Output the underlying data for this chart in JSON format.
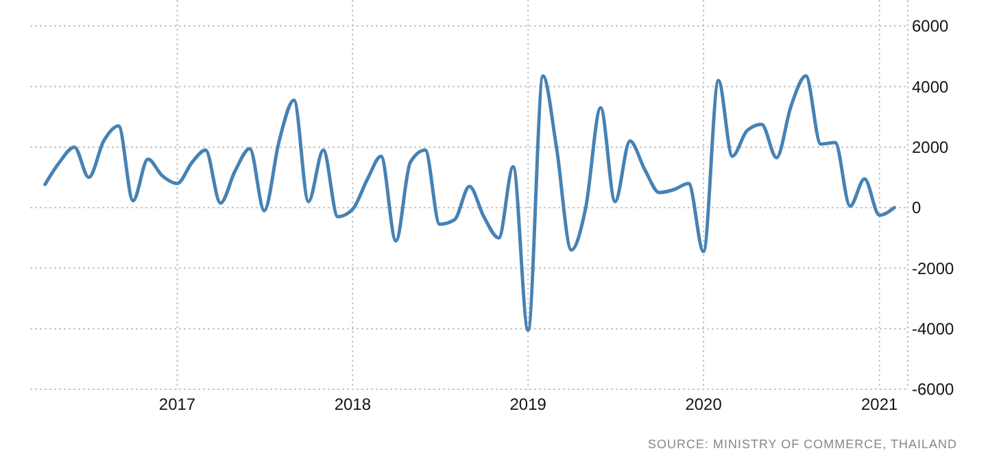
{
  "chart_data": {
    "type": "line",
    "x": [
      "2016-04",
      "2016-05",
      "2016-06",
      "2016-07",
      "2016-08",
      "2016-09",
      "2016-10",
      "2016-11",
      "2016-12",
      "2017-01",
      "2017-02",
      "2017-03",
      "2017-04",
      "2017-05",
      "2017-06",
      "2017-07",
      "2017-08",
      "2017-09",
      "2017-10",
      "2017-11",
      "2017-12",
      "2018-01",
      "2018-02",
      "2018-03",
      "2018-04",
      "2018-05",
      "2018-06",
      "2018-07",
      "2018-08",
      "2018-09",
      "2018-10",
      "2018-11",
      "2018-12",
      "2019-01",
      "2019-02",
      "2019-03",
      "2019-04",
      "2019-05",
      "2019-06",
      "2019-07",
      "2019-08",
      "2019-09",
      "2019-10",
      "2019-11",
      "2019-12",
      "2020-01",
      "2020-02",
      "2020-03",
      "2020-04",
      "2020-05",
      "2020-06",
      "2020-07",
      "2020-08",
      "2020-09",
      "2020-10",
      "2020-11",
      "2020-12",
      "2021-01",
      "2021-02"
    ],
    "series": [
      {
        "color": "#4682b4",
        "values": [
          770,
          1500,
          2000,
          1000,
          2200,
          2700,
          230,
          1600,
          1050,
          800,
          1500,
          1900,
          150,
          1200,
          1950,
          -100,
          2200,
          3550,
          200,
          1900,
          -300,
          -50,
          950,
          1700,
          -1100,
          1500,
          1900,
          -550,
          -400,
          700,
          -300,
          -1000,
          1350,
          -4050,
          4350,
          2000,
          -1400,
          0,
          3300,
          200,
          2200,
          1250,
          500,
          600,
          800,
          -1450,
          4200,
          1700,
          2550,
          2750,
          1650,
          3350,
          4350,
          2100,
          2150,
          50,
          950,
          -250,
          0
        ]
      }
    ],
    "xlim": [
      "2016-03",
      "2021-03"
    ],
    "xticks": [
      {
        "value": "2017-01",
        "label": "2017"
      },
      {
        "value": "2018-01",
        "label": "2018"
      },
      {
        "value": "2019-01",
        "label": "2019"
      },
      {
        "value": "2020-01",
        "label": "2020"
      },
      {
        "value": "2021-01",
        "label": "2021"
      }
    ],
    "ylim": [
      -6000,
      6000
    ],
    "yticks": [
      -6000,
      -4000,
      -2000,
      0,
      2000,
      4000,
      6000
    ],
    "grid": true,
    "marker": "none",
    "line_style": "solid",
    "annotations": [
      "SOURCE: MINISTRY OF COMMERCE, THAILAND"
    ]
  }
}
